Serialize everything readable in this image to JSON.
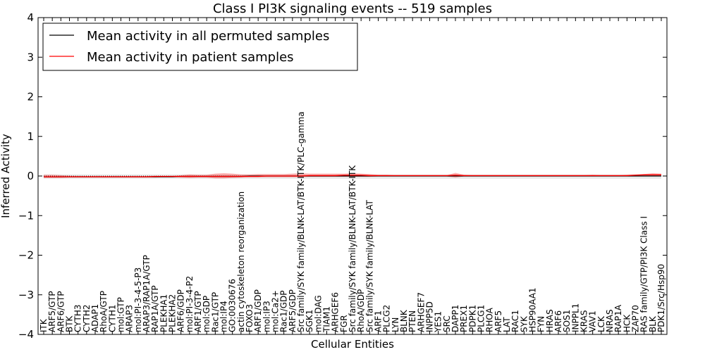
{
  "chart_data": {
    "type": "line",
    "title": "Class I PI3K signaling events -- 519 samples",
    "xlabel": "Cellular Entities",
    "ylabel": "Inferred Activity",
    "ylim": [
      -4,
      4
    ],
    "yticks": [
      -4,
      -3,
      -2,
      -1,
      0,
      1,
      2,
      3,
      4
    ],
    "categories": [
      "ITK",
      "ARF5/GTP",
      "ARF6/GTP",
      "BTK",
      "CYTH3",
      "CYTH2",
      "ADAP1",
      "RhoA/GTP",
      "CYTH1",
      "mol:GTP",
      "ARAP3",
      "mol:PI-3-4-5-P3",
      "ARAP3/RAP1A/GTP",
      "RAP1A/GTP",
      "PLEKHA1",
      "PLEKHA2",
      "ARF6/GDP",
      "mol:PI-3-4-P2",
      "ARF1/GTP",
      "mol:GDP",
      "Rac1/GTP",
      "mol:IP4",
      "GO:0030676",
      "actin cytoskeleton reorganization",
      "FOXO3",
      "ARF1/GDP",
      "mol:IP3",
      "mol:Ca2+",
      "Rac1/GDP",
      "ARF5/GDP",
      "Src family/SYK family/BLNK-LAT/BTK-ITK/PLC-gamma",
      "SGK1",
      "mol:DAG",
      "TIAM1",
      "ARHGEF6",
      "FGR",
      "Src family/SYK family/BLNK-LAT/BTK-ITK",
      "RhoA/GDP",
      "Src family/SYK family/BLNK-LAT",
      "ARF1",
      "PLCG2",
      "LYN",
      "BLNK",
      "PTEN",
      "ARHGEF7",
      "INPP5D",
      "YES1",
      "SRC",
      "DAPP1",
      "PREX1",
      "PDPK1",
      "PLCG1",
      "RHOA",
      "ARF5",
      "LAT",
      "RAC1",
      "SYK",
      "HSP90AA1",
      "FYN",
      "HRAS",
      "ARF6",
      "SOS1",
      "INPPL1",
      "KRAS",
      "VAV1",
      "LCK",
      "NRAS",
      "RAP1A",
      "HCK",
      "ZAP70",
      "RAS family/GTP/PI3K Class I",
      "BLK",
      "PDK1/Src/Hsp90"
    ],
    "series": [
      {
        "name": "Mean activity in all permuted samples",
        "color": "#000000",
        "values": [
          -0.02,
          -0.02,
          -0.02,
          -0.02,
          -0.02,
          -0.02,
          -0.02,
          -0.02,
          -0.02,
          -0.02,
          -0.02,
          -0.02,
          -0.02,
          -0.02,
          -0.02,
          -0.02,
          -0.01,
          -0.01,
          -0.01,
          -0.01,
          -0.01,
          -0.01,
          -0.01,
          -0.01,
          0.0,
          0.0,
          0.0,
          0.0,
          0.0,
          0.0,
          0.0,
          0.0,
          0.0,
          0.0,
          0.0,
          0.0,
          0.0,
          0.0,
          0.0,
          0.0,
          0.0,
          0.0,
          0.0,
          0.0,
          0.0,
          0.0,
          0.0,
          0.0,
          0.0,
          0.0,
          0.0,
          0.0,
          0.0,
          0.0,
          0.0,
          0.0,
          0.0,
          0.0,
          0.0,
          0.0,
          0.0,
          0.0,
          0.0,
          0.0,
          0.0,
          0.0,
          0.0,
          0.0,
          0.0,
          0.0,
          0.0,
          0.0,
          0.0
        ]
      },
      {
        "name": "Mean activity in patient samples",
        "color": "#ff0000",
        "values": [
          -0.02,
          -0.02,
          -0.02,
          -0.02,
          -0.02,
          -0.02,
          -0.02,
          -0.02,
          -0.02,
          -0.02,
          -0.02,
          -0.02,
          -0.02,
          -0.01,
          -0.01,
          -0.01,
          -0.01,
          -0.01,
          -0.01,
          -0.01,
          -0.01,
          -0.01,
          -0.01,
          -0.01,
          -0.01,
          -0.01,
          0.0,
          0.0,
          0.0,
          0.0,
          0.0,
          0.01,
          0.01,
          0.01,
          0.01,
          0.02,
          0.02,
          0.02,
          0.01,
          0.01,
          0.01,
          0.01,
          0.01,
          0.01,
          0.01,
          0.01,
          0.01,
          0.01,
          0.02,
          0.01,
          0.01,
          0.01,
          0.01,
          0.01,
          0.01,
          0.01,
          0.01,
          0.01,
          0.01,
          0.01,
          0.01,
          0.01,
          0.01,
          0.01,
          0.01,
          0.01,
          0.01,
          0.01,
          0.01,
          0.02,
          0.03,
          0.03,
          0.03
        ],
        "band_upper": [
          0.03,
          0.03,
          0.02,
          0.01,
          0.0,
          0.0,
          0.0,
          0.0,
          0.0,
          0.0,
          0.0,
          0.0,
          0.0,
          0.0,
          0.0,
          0.0,
          0.02,
          0.04,
          0.03,
          0.03,
          0.06,
          0.07,
          0.06,
          0.04,
          0.04,
          0.05,
          0.05,
          0.05,
          0.05,
          0.06,
          0.07,
          0.06,
          0.06,
          0.06,
          0.06,
          0.06,
          0.07,
          0.06,
          0.05,
          0.03,
          0.03,
          0.02,
          0.02,
          0.02,
          0.02,
          0.02,
          0.02,
          0.02,
          0.08,
          0.03,
          0.02,
          0.02,
          0.02,
          0.02,
          0.02,
          0.02,
          0.02,
          0.02,
          0.02,
          0.02,
          0.02,
          0.02,
          0.02,
          0.02,
          0.03,
          0.02,
          0.02,
          0.02,
          0.03,
          0.04,
          0.05,
          0.07,
          0.06
        ],
        "band_lower": [
          -0.05,
          -0.05,
          -0.05,
          -0.04,
          -0.04,
          -0.04,
          -0.04,
          -0.04,
          -0.04,
          -0.04,
          -0.04,
          -0.04,
          -0.04,
          -0.04,
          -0.03,
          -0.03,
          -0.04,
          -0.05,
          -0.04,
          -0.04,
          -0.06,
          -0.06,
          -0.05,
          -0.04,
          -0.03,
          -0.03,
          -0.03,
          -0.03,
          -0.03,
          -0.03,
          -0.03,
          -0.02,
          -0.02,
          -0.02,
          -0.02,
          -0.02,
          -0.02,
          -0.02,
          -0.02,
          -0.01,
          -0.01,
          -0.01,
          -0.01,
          -0.01,
          -0.01,
          -0.01,
          -0.01,
          -0.01,
          -0.04,
          -0.01,
          -0.01,
          -0.01,
          -0.01,
          -0.01,
          -0.01,
          -0.01,
          -0.01,
          -0.01,
          -0.01,
          -0.01,
          -0.01,
          -0.01,
          -0.01,
          -0.01,
          -0.01,
          -0.01,
          -0.01,
          -0.01,
          -0.01,
          -0.01,
          0.0,
          0.0,
          0.0
        ]
      }
    ],
    "permuted_band_upper": 0.04,
    "permuted_band_lower": -0.07,
    "legend_position": "top-left",
    "grid": false
  }
}
